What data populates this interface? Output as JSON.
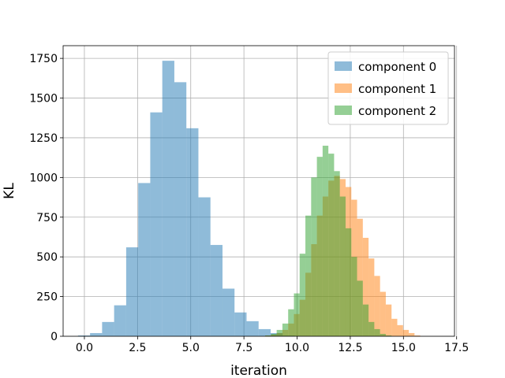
{
  "chart_data": {
    "type": "histogram",
    "xlabel": "iteration",
    "ylabel": "KL",
    "xlim": [
      -1.0,
      17.4
    ],
    "ylim": [
      0,
      1830
    ],
    "xticks": [
      0.0,
      2.5,
      5.0,
      7.5,
      10.0,
      12.5,
      15.0,
      17.5
    ],
    "xtick_labels": [
      "0.0",
      "2.5",
      "5.0",
      "7.5",
      "10.0",
      "12.5",
      "15.0",
      "17.5"
    ],
    "yticks": [
      0,
      250,
      500,
      750,
      1000,
      1250,
      1500,
      1750
    ],
    "ytick_labels": [
      "0",
      "250",
      "500",
      "750",
      "1000",
      "1250",
      "1500",
      "1750"
    ],
    "grid": true,
    "legend_position": "top-right",
    "series": [
      {
        "name": "component 0",
        "color": "#1f77b4",
        "alpha": 0.5,
        "bin_start": -0.3,
        "bin_width": 0.566,
        "counts": [
          5,
          20,
          90,
          195,
          560,
          965,
          1410,
          1735,
          1600,
          1310,
          875,
          575,
          300,
          150,
          95,
          45,
          20,
          5
        ]
      },
      {
        "name": "component 1",
        "color": "#ff7f0e",
        "alpha": 0.5,
        "bin_start": 8.5,
        "bin_width": 0.27,
        "counts": [
          5,
          10,
          20,
          40,
          80,
          140,
          230,
          400,
          580,
          760,
          880,
          980,
          1010,
          990,
          940,
          860,
          740,
          620,
          490,
          380,
          280,
          200,
          110,
          70,
          40,
          20,
          5
        ]
      },
      {
        "name": "component 2",
        "color": "#2ca02c",
        "alpha": 0.5,
        "bin_start": 8.5,
        "bin_width": 0.27,
        "counts": [
          5,
          15,
          40,
          80,
          170,
          270,
          520,
          760,
          1000,
          1130,
          1200,
          1150,
          1040,
          880,
          680,
          500,
          350,
          200,
          90,
          45,
          15,
          5
        ]
      }
    ]
  }
}
